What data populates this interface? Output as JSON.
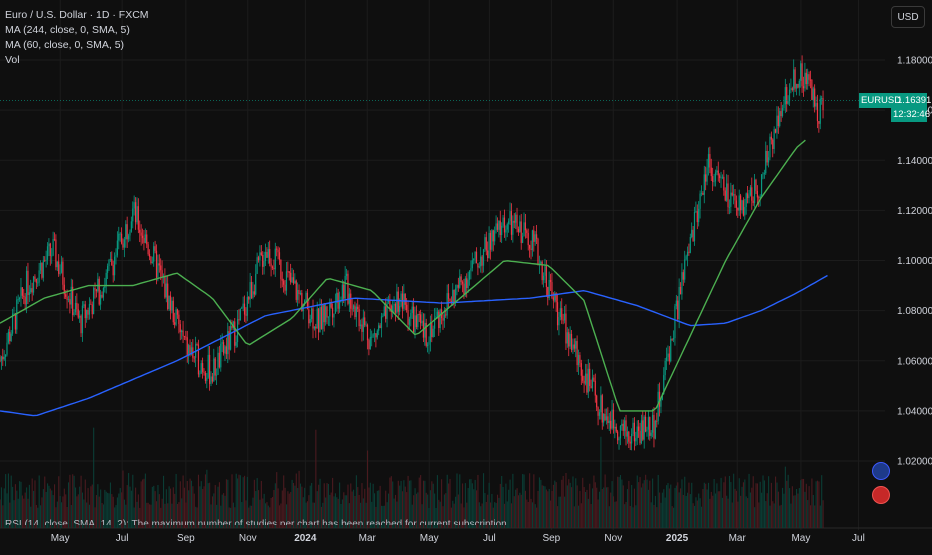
{
  "header": {
    "symbol_title": "Euro / U.S. Dollar · 1D · FXCM",
    "indicator_1": "MA (244, close, 0, SMA, 5)",
    "indicator_2": "MA (60, close, 0, SMA, 5)",
    "volume_label": "Vol"
  },
  "currency_button": "USD",
  "price_badge": {
    "symbol": "EURUSD",
    "price": "1.16391",
    "countdown": "12:32:46"
  },
  "rsi_notice": "RSI (14, close, SMA, 14, 2): The maximum number of studies per chart has been reached for current subscription",
  "colors": {
    "background": "#0f0f0f",
    "up": "#089981",
    "down": "#f23645",
    "ma244": "#2962ff",
    "ma60": "#4caf50",
    "grid": "#1c1c1c"
  },
  "icons": {
    "events_1": "economic-event-icon",
    "events_2": "earnings-flag-icon"
  },
  "chart_data": {
    "type": "candlestick",
    "title": "Euro / U.S. Dollar · 1D · FXCM",
    "ylim": [
      1.005,
      1.19
    ],
    "y_ticks": [
      "1.18000",
      "1.16000",
      "1.14000",
      "1.12000",
      "1.10000",
      "1.08000",
      "1.06000",
      "1.04000",
      "1.02000"
    ],
    "x_ticks": [
      "May",
      "Jul",
      "Sep",
      "Nov",
      "2024",
      "Mar",
      "May",
      "Jul",
      "Sep",
      "Nov",
      "2025",
      "Mar",
      "May",
      "Jul"
    ],
    "last_price": 1.16391,
    "series": [
      {
        "name": "MA (244, close, 0, SMA, 5)",
        "x": [
          0,
          0.04,
          0.1,
          0.2,
          0.3,
          0.4,
          0.5,
          0.6,
          0.66,
          0.72,
          0.78,
          0.82,
          0.86,
          0.9,
          0.935
        ],
        "values": [
          1.04,
          1.038,
          1.045,
          1.06,
          1.078,
          1.085,
          1.083,
          1.085,
          1.088,
          1.082,
          1.074,
          1.075,
          1.08,
          1.087,
          1.094
        ]
      },
      {
        "name": "MA (60, close, 0, SMA, 5)",
        "x": [
          0,
          0.05,
          0.1,
          0.15,
          0.2,
          0.24,
          0.28,
          0.33,
          0.37,
          0.42,
          0.47,
          0.52,
          0.57,
          0.62,
          0.66,
          0.7,
          0.74,
          0.78,
          0.82,
          0.86,
          0.9,
          0.91
        ],
        "values": [
          1.075,
          1.085,
          1.09,
          1.09,
          1.095,
          1.085,
          1.066,
          1.077,
          1.093,
          1.088,
          1.07,
          1.085,
          1.1,
          1.098,
          1.084,
          1.04,
          1.04,
          1.07,
          1.1,
          1.125,
          1.145,
          1.148
        ]
      },
      {
        "name": "EURUSD close",
        "x": [
          0,
          0.03,
          0.06,
          0.09,
          0.12,
          0.15,
          0.18,
          0.21,
          0.24,
          0.27,
          0.3,
          0.33,
          0.36,
          0.39,
          0.42,
          0.45,
          0.48,
          0.51,
          0.54,
          0.57,
          0.6,
          0.63,
          0.66,
          0.68,
          0.71,
          0.74,
          0.77,
          0.8,
          0.83,
          0.86,
          0.88,
          0.9,
          0.915,
          0.925,
          0.93
        ],
        "values": [
          1.06,
          1.09,
          1.104,
          1.075,
          1.093,
          1.12,
          1.095,
          1.065,
          1.055,
          1.075,
          1.105,
          1.09,
          1.075,
          1.09,
          1.068,
          1.085,
          1.07,
          1.085,
          1.1,
          1.115,
          1.11,
          1.08,
          1.055,
          1.04,
          1.03,
          1.035,
          1.09,
          1.14,
          1.12,
          1.13,
          1.16,
          1.175,
          1.17,
          1.16,
          1.164
        ]
      }
    ],
    "volume_note": "daily volume histogram"
  }
}
